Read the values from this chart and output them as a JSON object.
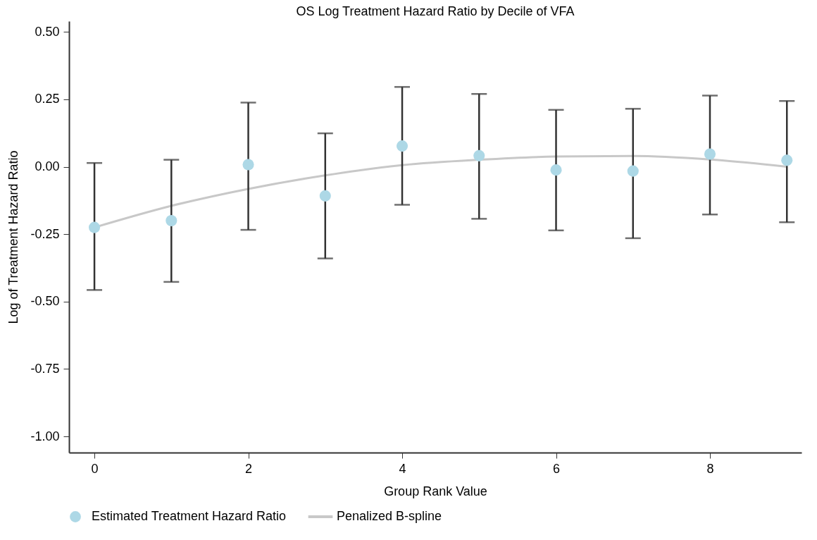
{
  "chart_data": {
    "type": "scatter",
    "title": "OS Log Treatment Hazard Ratio by Decile of VFA",
    "xlabel": "Group Rank Value",
    "ylabel": "Log of Treatment Hazard Ratio",
    "x": [
      0,
      1,
      2,
      3,
      4,
      5,
      6,
      7,
      8,
      9
    ],
    "series": [
      {
        "name": "Estimated Treatment Hazard Ratio",
        "color": "#add8e6",
        "marker": "circle",
        "values": [
          -0.225,
          -0.2,
          0.008,
          -0.108,
          0.077,
          0.041,
          -0.012,
          -0.016,
          0.047,
          0.024
        ],
        "errors": [
          [
            -0.457,
            0.014
          ],
          [
            -0.427,
            0.026
          ],
          [
            -0.234,
            0.238
          ],
          [
            -0.34,
            0.124
          ],
          [
            -0.141,
            0.296
          ],
          [
            -0.193,
            0.27
          ],
          [
            -0.236,
            0.211
          ],
          [
            -0.265,
            0.215
          ],
          [
            -0.177,
            0.264
          ],
          [
            -0.206,
            0.244
          ]
        ]
      },
      {
        "name": "Penalized B-spline",
        "type": "line",
        "color": "#c8c8c8",
        "line_style": "solid",
        "values": [
          -0.225,
          -0.145,
          -0.082,
          -0.032,
          0.006,
          0.026,
          0.038,
          0.04,
          0.027,
          0.0
        ]
      }
    ],
    "xlim": [
      -0.33,
      9.19
    ],
    "xticks": [
      0,
      2,
      4,
      6,
      8
    ],
    "ylim": [
      -1.06,
      0.54
    ],
    "yticks": [
      {
        "value": -1,
        "label": "-1.00"
      },
      {
        "value": -0.75,
        "label": "-0.75"
      },
      {
        "value": -0.5,
        "label": "-0.50"
      },
      {
        "value": -0.25,
        "label": "-0.25"
      },
      {
        "value": 0,
        "label": "0.00"
      },
      {
        "value": 0.25,
        "label": "0.25"
      },
      {
        "value": 0.5,
        "label": "0.50"
      }
    ],
    "grid": false,
    "legend": "bottom"
  }
}
